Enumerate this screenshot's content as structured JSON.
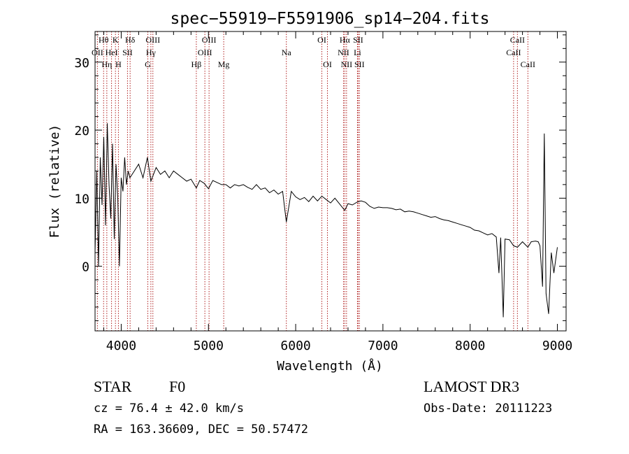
{
  "chart_data": {
    "type": "line",
    "title": "spec−55919−F5591906_sp14−204.fits",
    "xlabel": "Wavelength (Å)",
    "ylabel": "Flux (relative)",
    "xlim": [
      3700,
      9100
    ],
    "ylim": [
      -9.5,
      34.5
    ],
    "x_ticks": [
      4000,
      5000,
      6000,
      7000,
      8000,
      9000
    ],
    "y_ticks": [
      0,
      10,
      20,
      30
    ],
    "series": [
      {
        "name": "flux",
        "x": [
          3700,
          3720,
          3740,
          3760,
          3780,
          3800,
          3820,
          3840,
          3860,
          3880,
          3900,
          3920,
          3940,
          3960,
          3980,
          4000,
          4020,
          4040,
          4060,
          4080,
          4100,
          4150,
          4200,
          4250,
          4300,
          4340,
          4400,
          4450,
          4500,
          4550,
          4600,
          4650,
          4700,
          4750,
          4800,
          4861,
          4900,
          4950,
          5000,
          5050,
          5100,
          5150,
          5200,
          5250,
          5300,
          5350,
          5400,
          5450,
          5500,
          5550,
          5600,
          5650,
          5700,
          5750,
          5800,
          5850,
          5893,
          5950,
          6000,
          6050,
          6100,
          6150,
          6200,
          6250,
          6300,
          6350,
          6400,
          6450,
          6500,
          6563,
          6600,
          6650,
          6700,
          6750,
          6800,
          6850,
          6900,
          6950,
          7000,
          7050,
          7100,
          7150,
          7200,
          7250,
          7300,
          7350,
          7400,
          7450,
          7500,
          7550,
          7600,
          7650,
          7700,
          7750,
          7800,
          7850,
          7900,
          7950,
          8000,
          8050,
          8100,
          8150,
          8200,
          8250,
          8300,
          8330,
          8350,
          8380,
          8400,
          8450,
          8498,
          8542,
          8600,
          8662,
          8700,
          8750,
          8780,
          8800,
          8830,
          8850,
          8870,
          8900,
          8930,
          8960,
          9000
        ],
        "values": [
          2,
          14,
          0,
          16,
          9,
          19,
          6,
          21,
          12,
          7,
          18,
          4,
          15,
          10,
          0,
          13,
          11,
          16,
          12,
          14,
          13,
          14,
          15,
          13,
          16,
          12.5,
          14.5,
          13.5,
          14,
          13,
          14,
          13.5,
          13,
          12.5,
          12.8,
          11.5,
          12.6,
          12.2,
          11.4,
          12.6,
          12.3,
          12,
          12,
          11.5,
          12,
          11.8,
          12,
          11.6,
          11.3,
          12,
          11.3,
          11.5,
          10.8,
          11.2,
          10.6,
          11,
          6.5,
          11,
          10.2,
          9.8,
          10.1,
          9.5,
          10.3,
          9.6,
          10.3,
          9.8,
          9.3,
          10,
          9.2,
          8.2,
          9.2,
          9,
          9.4,
          9.6,
          9.4,
          8.8,
          8.5,
          8.7,
          8.6,
          8.6,
          8.5,
          8.3,
          8.4,
          8,
          8.1,
          8,
          7.8,
          7.6,
          7.4,
          7.2,
          7.3,
          7,
          6.8,
          6.7,
          6.5,
          6.3,
          6.1,
          5.9,
          5.7,
          5.3,
          5.2,
          4.9,
          4.6,
          4.8,
          4.3,
          -1,
          4.2,
          -7.5,
          4,
          3.9,
          3,
          2.8,
          3.6,
          2.8,
          3.6,
          3.7,
          3.6,
          3,
          -3,
          19.5,
          -4,
          -7,
          2,
          -1,
          2.8
        ]
      }
    ],
    "line_markers": [
      {
        "name": "Hθ",
        "wavelength": 3798,
        "label_row": 1
      },
      {
        "name": "OII",
        "wavelength": 3727,
        "label_row": 2
      },
      {
        "name": "Hη",
        "wavelength": 3835,
        "label_row": 3
      },
      {
        "name": "HeI",
        "wavelength": 3889,
        "label_row": 2
      },
      {
        "name": "K",
        "wavelength": 3934,
        "label_row": 1
      },
      {
        "name": "H",
        "wavelength": 3968,
        "label_row": 3
      },
      {
        "name": "SII",
        "wavelength": 4072,
        "label_row": 2
      },
      {
        "name": "Hδ",
        "wavelength": 4102,
        "label_row": 1
      },
      {
        "name": "Hγ",
        "wavelength": 4340,
        "label_row": 2
      },
      {
        "name": "G",
        "wavelength": 4305,
        "label_row": 3
      },
      {
        "name": "OIII",
        "wavelength": 4363,
        "label_row": 1
      },
      {
        "name": "Hβ",
        "wavelength": 4861,
        "label_row": 3
      },
      {
        "name": "OIII",
        "wavelength": 4959,
        "label_row": 2
      },
      {
        "name": "OIII",
        "wavelength": 5007,
        "label_row": 1
      },
      {
        "name": "Mg",
        "wavelength": 5175,
        "label_row": 3
      },
      {
        "name": "Na",
        "wavelength": 5893,
        "label_row": 2
      },
      {
        "name": "OI",
        "wavelength": 6300,
        "label_row": 1
      },
      {
        "name": "OI",
        "wavelength": 6364,
        "label_row": 3
      },
      {
        "name": "NII",
        "wavelength": 6548,
        "label_row": 2
      },
      {
        "name": "Hα",
        "wavelength": 6563,
        "label_row": 1
      },
      {
        "name": "NII",
        "wavelength": 6583,
        "label_row": 3
      },
      {
        "name": "Li",
        "wavelength": 6708,
        "label_row": 2
      },
      {
        "name": "SII",
        "wavelength": 6716,
        "label_row": 1
      },
      {
        "name": "SII",
        "wavelength": 6731,
        "label_row": 3
      },
      {
        "name": "CaII",
        "wavelength": 8498,
        "label_row": 2
      },
      {
        "name": "CaII",
        "wavelength": 8542,
        "label_row": 1
      },
      {
        "name": "CaII",
        "wavelength": 8662,
        "label_row": 3
      }
    ],
    "marker_color": "#b02020",
    "line_color": "#000000"
  },
  "info": {
    "class_label": "STAR",
    "subclass_label": "F0",
    "redshift_text": "cz = 76.4 ± 42.0 km/s",
    "coords_text": "RA = 163.36609, DEC =  50.57472",
    "survey_label": "LAMOST DR3",
    "obs_date_text": "Obs-Date: 20111223"
  }
}
